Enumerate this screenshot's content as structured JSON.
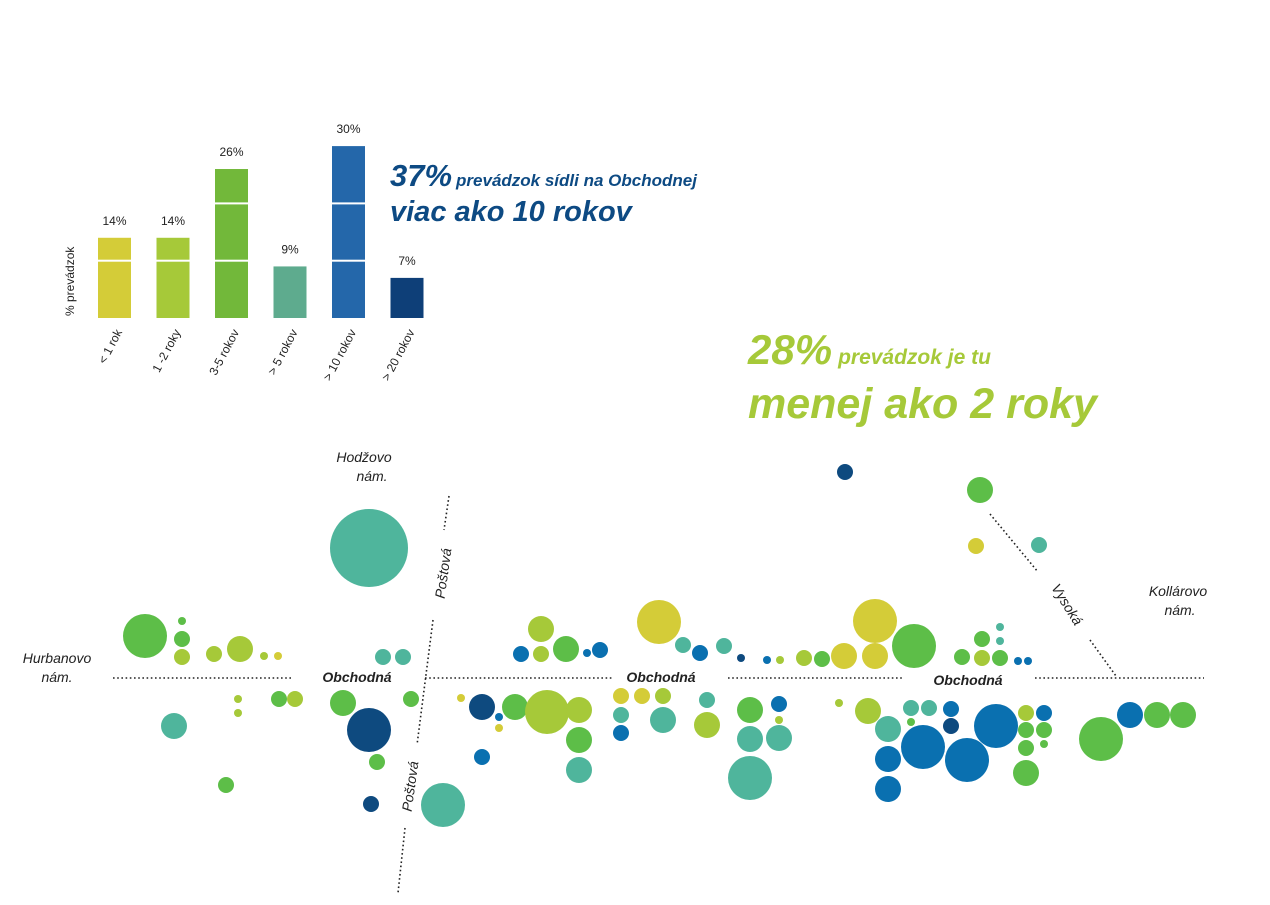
{
  "chart_data": [
    {
      "type": "bar",
      "ylabel": "% prevádzok",
      "categories": [
        "< 1 rok",
        "1 -2 roky",
        "3-5 rokov",
        "> 5 rokov",
        "> 10 rokov",
        "> 20 rokov"
      ],
      "values": [
        14,
        14,
        26,
        9,
        30,
        7
      ],
      "value_labels": [
        "14%",
        "14%",
        "26%",
        "9%",
        "30%",
        "7%"
      ],
      "colors": [
        "#d4cc38",
        "#a6c939",
        "#72b83a",
        "#5eab8e",
        "#2467aa",
        "#0e3f78"
      ]
    },
    {
      "type": "scatter",
      "description_labels": {
        "streets": [
          "Obchodná",
          "Obchodná",
          "Obchodná",
          "Poštová",
          "Poštová",
          "Vysoká"
        ],
        "squares": [
          "Hurbanovo nám.",
          "Hodžovo nám.",
          "Kollárovo nám."
        ]
      },
      "legend_colors_by_category": [
        "#d4cc38",
        "#a6c939",
        "#5dbe48",
        "#4fb59c",
        "#0a70b0",
        "#0e4a7f"
      ]
    }
  ],
  "headline1": {
    "big": "37%",
    "small": "prevádzok sídli na Obchodnej",
    "line2": "viac ako 10 rokov"
  },
  "headline2": {
    "big": "28%",
    "small": "prevádzok je tu",
    "line2": "menej ako 2 roky"
  },
  "map": {
    "streets": {
      "obchodna": "Obchodná",
      "postova": "Poštová",
      "vysoka": "Vysoká"
    },
    "squares": {
      "hurbanovo_1": "Hurbanovo",
      "hurbanovo_2": "nám.",
      "hodzovo_1": "Hodžovo",
      "hodzovo_2": "nám.",
      "kollarovo_1": "Kollárovo",
      "kollarovo_2": "nám."
    }
  }
}
